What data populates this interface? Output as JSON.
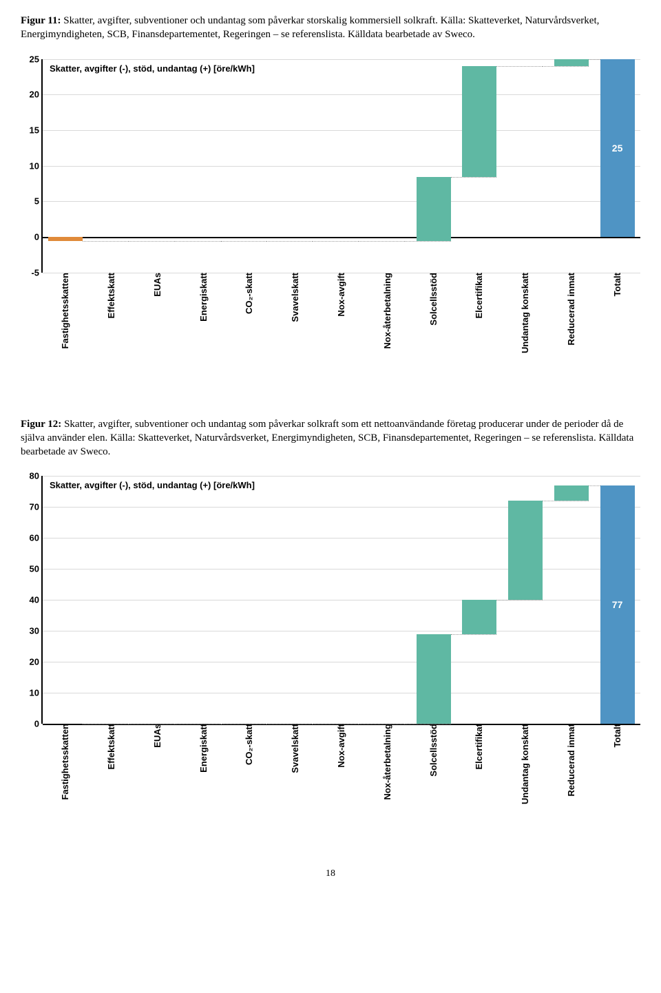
{
  "fig11": {
    "caption_bold": "Figur 11:",
    "caption_text": " Skatter, avgifter, subventioner och undantag som påverkar storskalig kommersiell solkraft. Källa: Skatteverket, Naturvårdsverket, Energimyndigheten, SCB, Finansdepartementet, Regeringen – se referenslista. Källdata bearbetade av Sweco.",
    "title": "Skatter, avgifter (-), stöd, undantag (+) [öre/kWh]",
    "type": "waterfall",
    "ymin": -5,
    "ymax": 25,
    "ytick_step": 5,
    "colors": {
      "pos": "#5fb8a3",
      "neg": "#e08a3a",
      "total": "#4f94c4",
      "grid": "#d9d9d9",
      "zero": "#000000",
      "connector": "#999999"
    },
    "categories": [
      "Fastighetsskatten",
      "Effektskatt",
      "EUAs",
      "Energiskatt",
      "CO₂-skatt",
      "Svavelskatt",
      "Nox-avgift",
      "Nox-återbetalning",
      "Solcellsstöd",
      "Elcertifikat",
      "Undantag konskatt",
      "Reducerad inmat",
      "Totalt"
    ],
    "values": [
      -0.6,
      0,
      0,
      0,
      0,
      0,
      0,
      0,
      9,
      15.6,
      0,
      1,
      25
    ],
    "total_label": "25",
    "is_total": [
      false,
      false,
      false,
      false,
      false,
      false,
      false,
      false,
      false,
      false,
      false,
      false,
      true
    ]
  },
  "fig12": {
    "caption_bold": "Figur 12:",
    "caption_text": " Skatter, avgifter, subventioner och undantag som påverkar solkraft som ett nettoanvändande företag producerar under de perioder då de själva använder elen. Källa: Skatteverket, Naturvårdsverket, Energimyndigheten, SCB, Finansdepartementet, Regeringen – se referenslista. Källdata bearbetade av Sweco.",
    "title": "Skatter, avgifter (-), stöd, undantag (+) [öre/kWh]",
    "type": "waterfall",
    "ymin": 0,
    "ymax": 80,
    "ytick_step": 10,
    "colors": {
      "pos": "#5fb8a3",
      "neg": "#e08a3a",
      "total": "#4f94c4",
      "grid": "#d9d9d9",
      "zero": "#000000",
      "connector": "#999999"
    },
    "categories": [
      "Fastighetsskatten",
      "Effektskatt",
      "EUAs",
      "Energiskatt",
      "CO₂-skatt",
      "Svavelskatt",
      "Nox-avgift",
      "Nox-återbetalning",
      "Solcellsstöd",
      "Elcertifikat",
      "Undantag konskatt",
      "Reducerad inmat",
      "Totalt"
    ],
    "values": [
      0,
      0,
      0,
      0,
      0,
      0,
      0,
      0,
      29,
      11,
      32,
      5,
      77
    ],
    "total_label": "77",
    "is_total": [
      false,
      false,
      false,
      false,
      false,
      false,
      false,
      false,
      false,
      false,
      false,
      false,
      true
    ]
  },
  "page_number": "18"
}
